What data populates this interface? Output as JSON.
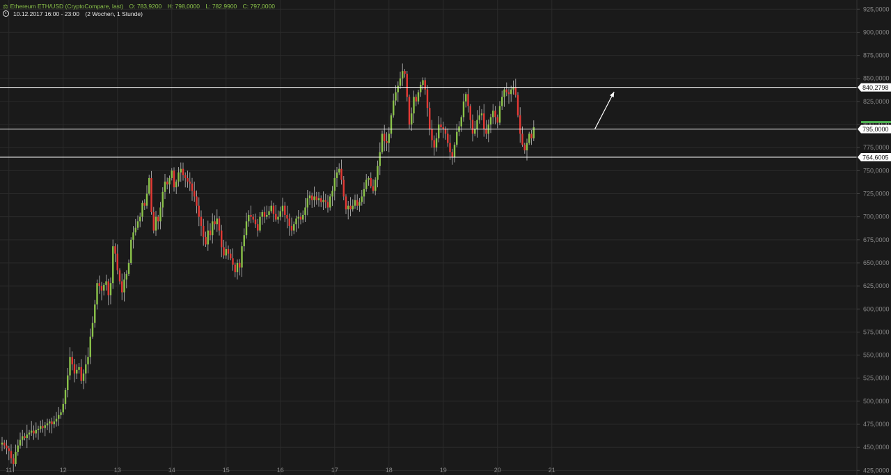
{
  "header": {
    "symbol": "Ethereum ETH/USD (CryptoCompare, last)",
    "open": "O: 783,9200",
    "high": "H: 798,0000",
    "low": "L: 782,9900",
    "close": "C: 797,0000",
    "period": "10.12.2017 16:00 - 23:00",
    "range": "(2 Wochen, 1 Stunde)"
  },
  "colors": {
    "background": "#1a1a1a",
    "grid": "#2b2b2b",
    "up": "#8bc34a",
    "down": "#e53935",
    "wick": "#9e9e9e",
    "axis_text": "#8a8a8a",
    "level_line": "#ffffff",
    "label_bg": "#ffffff",
    "last_price_marker": "#4caf50"
  },
  "chart_data": {
    "type": "candlestick",
    "title": "",
    "xlabel": "",
    "ylabel": "",
    "ylim": [
      420,
      935
    ],
    "grid": true,
    "y_ticks": [
      "425,0000",
      "450,0000",
      "475,0000",
      "500,0000",
      "525,0000",
      "550,0000",
      "575,0000",
      "600,0000",
      "625,0000",
      "650,0000",
      "675,0000",
      "700,0000",
      "725,0000",
      "750,0000",
      "775,0000",
      "800,0000",
      "825,0000",
      "850,0000",
      "875,0000",
      "900,0000",
      "925,0000"
    ],
    "y_tick_values": [
      425,
      450,
      475,
      500,
      525,
      550,
      575,
      600,
      625,
      650,
      675,
      700,
      725,
      750,
      775,
      800,
      825,
      850,
      875,
      900,
      925
    ],
    "x_labels": [
      "11",
      "12",
      "13",
      "14",
      "15",
      "16",
      "17",
      "18",
      "19",
      "20",
      "21"
    ],
    "x_label_index": [
      3,
      27,
      51,
      75,
      99,
      123,
      147,
      171,
      195,
      219,
      243
    ],
    "horizontal_levels": [
      {
        "value": 840.2798,
        "label": "840,2798"
      },
      {
        "value": 795.0,
        "label": "795,0000"
      },
      {
        "value": 764.6005,
        "label": "764,6005"
      }
    ],
    "arrow": {
      "from": [
        262,
        795
      ],
      "to": [
        269,
        840
      ]
    },
    "close_series": [
      455,
      452,
      449,
      446,
      438,
      432,
      445,
      452,
      458,
      462,
      460,
      464,
      466,
      468,
      465,
      469,
      470,
      473,
      471,
      474,
      476,
      478,
      475,
      478,
      481,
      485,
      488,
      497,
      512,
      528,
      548,
      540,
      530,
      534,
      537,
      522,
      530,
      540,
      548,
      570,
      585,
      605,
      628,
      625,
      620,
      626,
      630,
      615,
      628,
      668,
      660,
      642,
      630,
      618,
      632,
      638,
      650,
      675,
      683,
      688,
      695,
      700,
      715,
      712,
      725,
      742,
      705,
      685,
      700,
      695,
      710,
      727,
      738,
      735,
      742,
      750,
      732,
      738,
      748,
      752,
      745,
      742,
      738,
      736,
      728,
      722,
      712,
      700,
      690,
      678,
      670,
      685,
      680,
      695,
      692,
      698,
      685,
      667,
      658,
      665,
      660,
      655,
      648,
      640,
      650,
      645,
      668,
      680,
      695,
      702,
      700,
      697,
      692,
      685,
      700,
      705,
      700,
      702,
      706,
      712,
      703,
      697,
      700,
      706,
      712,
      702,
      698,
      690,
      685,
      692,
      698,
      700,
      697,
      702,
      710,
      720,
      723,
      718,
      722,
      718,
      720,
      716,
      718,
      716,
      710,
      722,
      728,
      742,
      748,
      752,
      740,
      722,
      708,
      712,
      708,
      712,
      718,
      712,
      716,
      722,
      730,
      740,
      742,
      733,
      728,
      740,
      755,
      770,
      790,
      782,
      780,
      790,
      810,
      826,
      835,
      842,
      850,
      858,
      855,
      830,
      800,
      812,
      830,
      825,
      835,
      843,
      848,
      838,
      818,
      795,
      783,
      775,
      785,
      800,
      797,
      795,
      790,
      780,
      770,
      765,
      778,
      792,
      798,
      808,
      825,
      833,
      820,
      805,
      790,
      795,
      805,
      810,
      812,
      795,
      790,
      800,
      808,
      815,
      808,
      802,
      820,
      830,
      838,
      835,
      833,
      838,
      840,
      832,
      810,
      790,
      778,
      772,
      780,
      790,
      785,
      797
    ]
  }
}
